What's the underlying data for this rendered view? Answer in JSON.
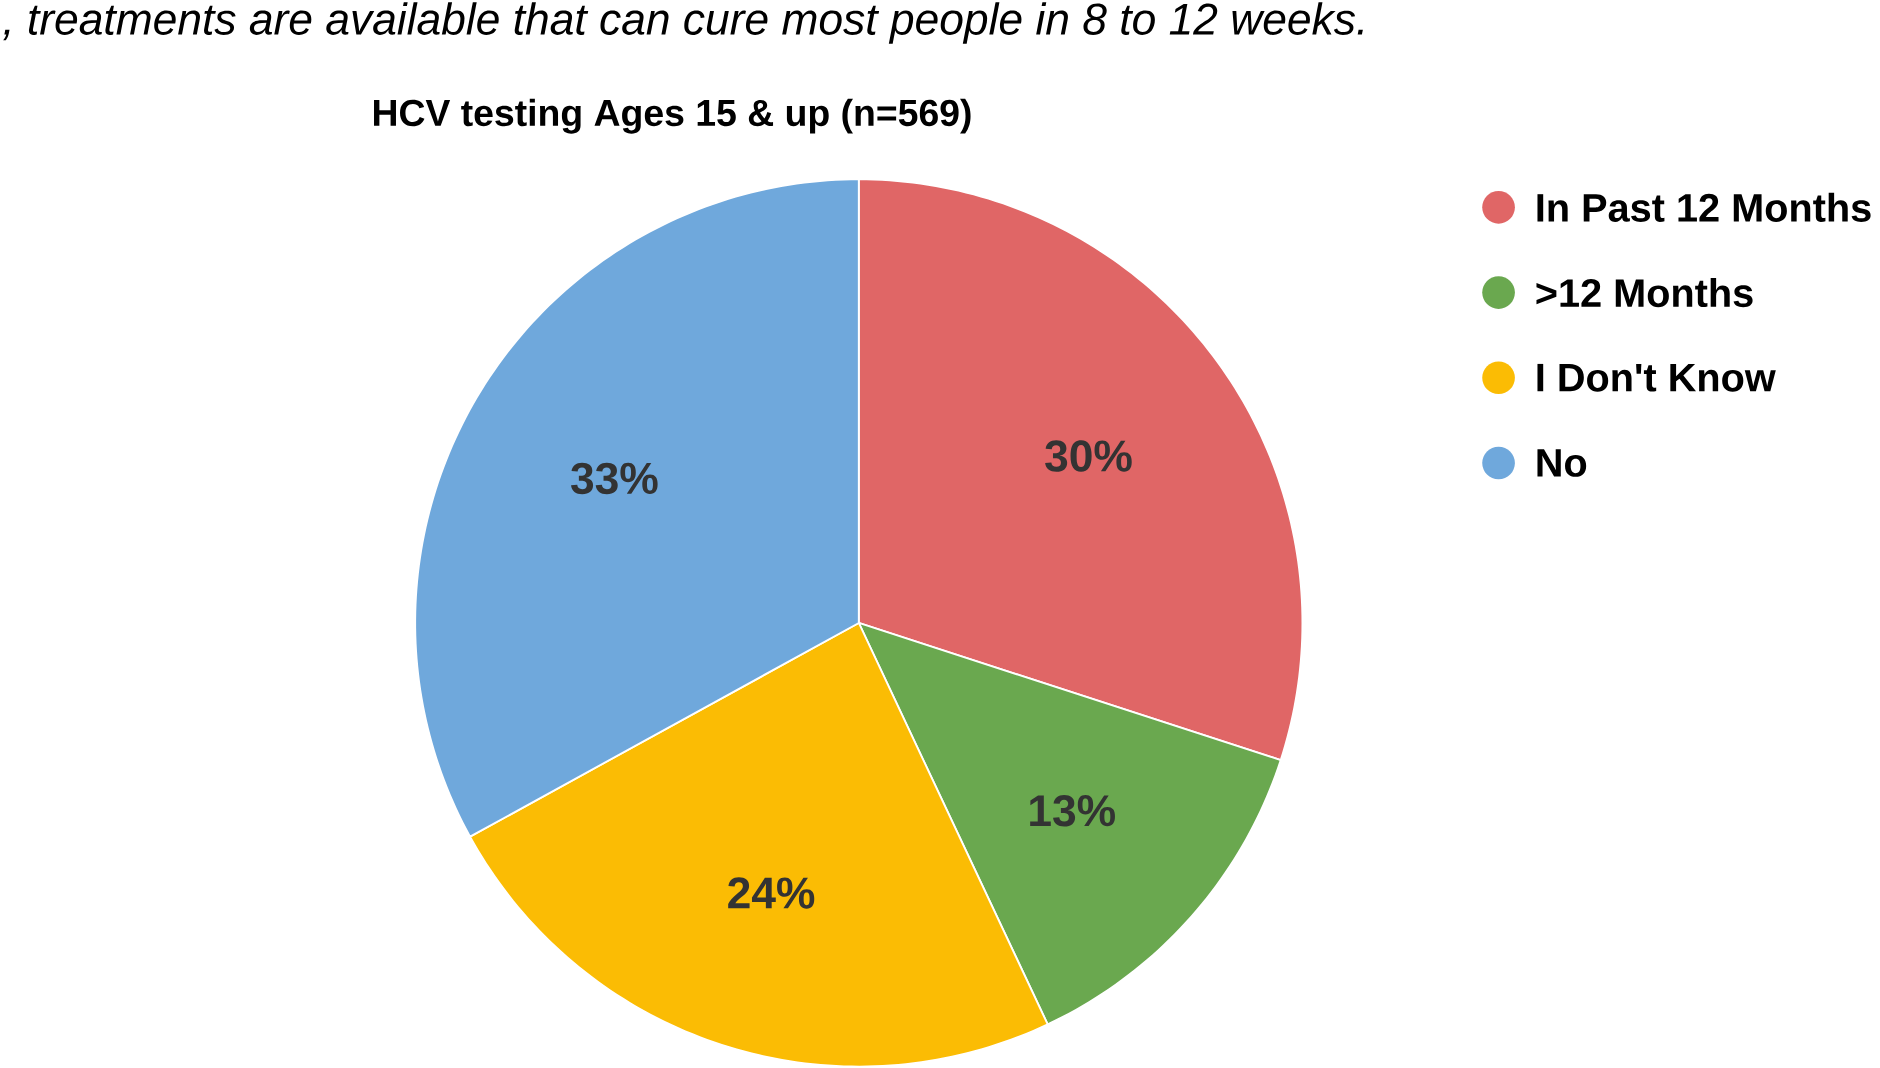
{
  "chart_data": {
    "type": "pie",
    "title": "HCV testing Ages 15 & up (n=569)",
    "annotations": [
      ", treatments are available that can cure most people in 8 to 12 weeks."
    ],
    "categories": [
      "In Past 12 Months",
      ">12 Months",
      "I Don't Know",
      "No"
    ],
    "values": [
      30,
      13,
      24,
      33
    ],
    "value_labels": [
      "30%",
      "13%",
      "24%",
      "33%"
    ],
    "colors": [
      "#e06666",
      "#6aa84f",
      "#fbbc04",
      "#6fa8dc"
    ],
    "legend": "right"
  }
}
